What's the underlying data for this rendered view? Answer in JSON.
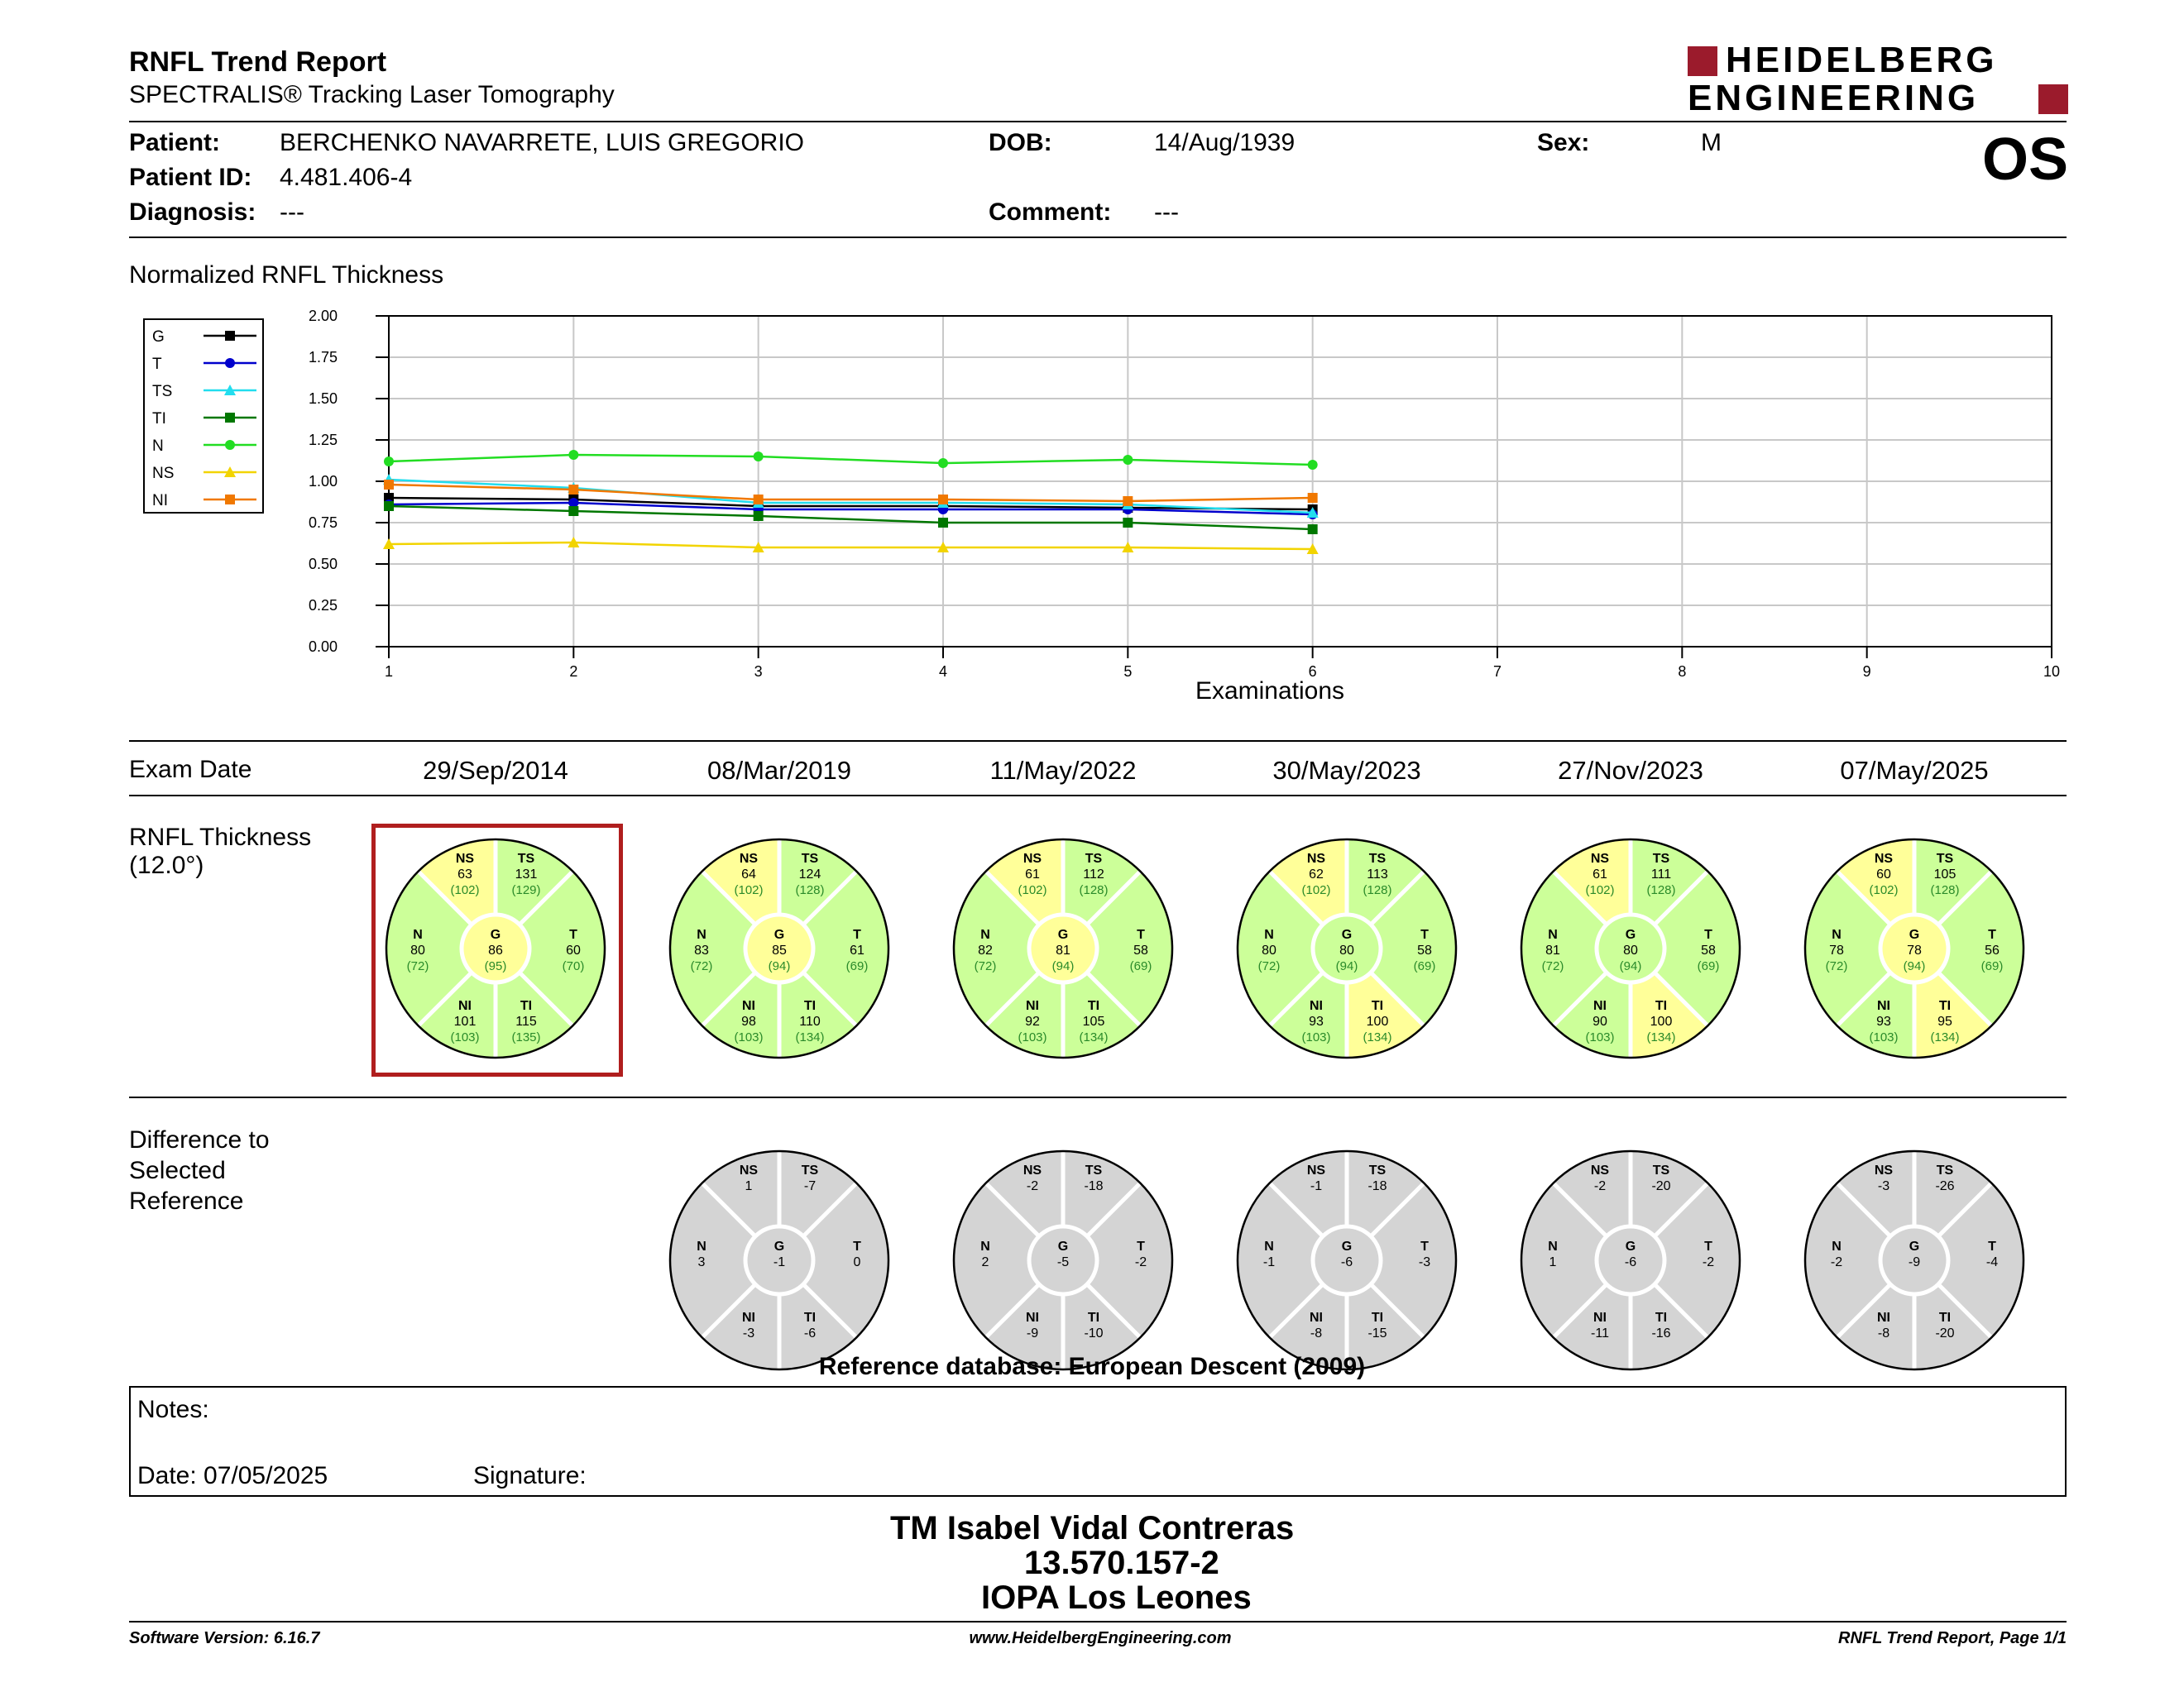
{
  "header": {
    "title": "RNFL Trend Report",
    "subtitle": "SPECTRALIS® Tracking Laser Tomography",
    "logo_line1": "HEIDELBERG",
    "logo_line2": "ENGINEERING",
    "logo_color": "#9b1b2c"
  },
  "patient": {
    "patient_label": "Patient:",
    "patient_value": "BERCHENKO NAVARRETE, LUIS GREGORIO",
    "dob_label": "DOB:",
    "dob_value": "14/Aug/1939",
    "sex_label": "Sex:",
    "sex_value": "M",
    "id_label": "Patient ID:",
    "id_value": "4.481.406-4",
    "diag_label": "Diagnosis:",
    "diag_value": "---",
    "comment_label": "Comment:",
    "comment_value": "---",
    "eye": "OS"
  },
  "chart_title": "Normalized RNFL Thickness",
  "chart_data": {
    "type": "line",
    "xlabel": "Examinations",
    "ylabel": "",
    "x_ticks": [
      "1",
      "2",
      "3",
      "4",
      "5",
      "6",
      "7",
      "8",
      "9",
      "10"
    ],
    "y_ticks": [
      "0.00",
      "0.25",
      "0.50",
      "0.75",
      "1.00",
      "1.25",
      "1.50",
      "1.75",
      "2.00"
    ],
    "xlim": [
      1,
      10
    ],
    "ylim": [
      0,
      2
    ],
    "grid": true,
    "legend_position": "left",
    "series": [
      {
        "name": "G",
        "color": "#000000",
        "marker": "square",
        "x": [
          1,
          2,
          3,
          4,
          5,
          6
        ],
        "values": [
          0.9,
          0.89,
          0.85,
          0.85,
          0.84,
          0.83
        ]
      },
      {
        "name": "T",
        "color": "#0000cc",
        "marker": "circle",
        "x": [
          1,
          2,
          3,
          4,
          5,
          6
        ],
        "values": [
          0.86,
          0.87,
          0.83,
          0.83,
          0.83,
          0.8
        ]
      },
      {
        "name": "TS",
        "color": "#22ddee",
        "marker": "triangle",
        "x": [
          1,
          2,
          3,
          4,
          5,
          6
        ],
        "values": [
          1.01,
          0.96,
          0.87,
          0.87,
          0.86,
          0.81
        ]
      },
      {
        "name": "TI",
        "color": "#007700",
        "marker": "square",
        "x": [
          1,
          2,
          3,
          4,
          5,
          6
        ],
        "values": [
          0.85,
          0.82,
          0.79,
          0.75,
          0.75,
          0.71
        ]
      },
      {
        "name": "N",
        "color": "#22dd22",
        "marker": "circle",
        "x": [
          1,
          2,
          3,
          4,
          5,
          6
        ],
        "values": [
          1.12,
          1.16,
          1.15,
          1.11,
          1.13,
          1.1
        ]
      },
      {
        "name": "NS",
        "color": "#f2d400",
        "marker": "triangle",
        "x": [
          1,
          2,
          3,
          4,
          5,
          6
        ],
        "values": [
          0.62,
          0.63,
          0.6,
          0.6,
          0.6,
          0.59
        ]
      },
      {
        "name": "NI",
        "color": "#f07800",
        "marker": "square",
        "x": [
          1,
          2,
          3,
          4,
          5,
          6
        ],
        "values": [
          0.98,
          0.95,
          0.89,
          0.89,
          0.88,
          0.9
        ]
      }
    ]
  },
  "exam_date_label": "Exam Date",
  "exam_dates": [
    "29/Sep/2014",
    "08/Mar/2019",
    "11/May/2022",
    "30/May/2023",
    "27/Nov/2023",
    "07/May/2025"
  ],
  "rnfl_label_line1": "RNFL Thickness",
  "rnfl_label_line2": "(12.0°)",
  "diff_label_line1": "Difference to",
  "diff_label_line2": "Selected",
  "diff_label_line3": "Reference",
  "colors": {
    "green": "#ccff99",
    "yellow": "#ffff99",
    "gray": "#d4d4d4",
    "selected_frame": "#b01e1e",
    "ref_text": "#2a8a2a"
  },
  "rnfl_charts": [
    {
      "selected": true,
      "NS": {
        "v": "63",
        "r": "(102)",
        "c": "yellow"
      },
      "TS": {
        "v": "131",
        "r": "(129)",
        "c": "green"
      },
      "N": {
        "v": "80",
        "r": "(72)",
        "c": "green"
      },
      "G": {
        "v": "86",
        "r": "(95)",
        "c": "yellow"
      },
      "T": {
        "v": "60",
        "r": "(70)",
        "c": "green"
      },
      "NI": {
        "v": "101",
        "r": "(103)",
        "c": "green"
      },
      "TI": {
        "v": "115",
        "r": "(135)",
        "c": "green"
      }
    },
    {
      "selected": false,
      "NS": {
        "v": "64",
        "r": "(102)",
        "c": "yellow"
      },
      "TS": {
        "v": "124",
        "r": "(128)",
        "c": "green"
      },
      "N": {
        "v": "83",
        "r": "(72)",
        "c": "green"
      },
      "G": {
        "v": "85",
        "r": "(94)",
        "c": "yellow"
      },
      "T": {
        "v": "61",
        "r": "(69)",
        "c": "green"
      },
      "NI": {
        "v": "98",
        "r": "(103)",
        "c": "green"
      },
      "TI": {
        "v": "110",
        "r": "(134)",
        "c": "green"
      }
    },
    {
      "selected": false,
      "NS": {
        "v": "61",
        "r": "(102)",
        "c": "yellow"
      },
      "TS": {
        "v": "112",
        "r": "(128)",
        "c": "green"
      },
      "N": {
        "v": "82",
        "r": "(72)",
        "c": "green"
      },
      "G": {
        "v": "81",
        "r": "(94)",
        "c": "yellow"
      },
      "T": {
        "v": "58",
        "r": "(69)",
        "c": "green"
      },
      "NI": {
        "v": "92",
        "r": "(103)",
        "c": "green"
      },
      "TI": {
        "v": "105",
        "r": "(134)",
        "c": "green"
      }
    },
    {
      "selected": false,
      "NS": {
        "v": "62",
        "r": "(102)",
        "c": "yellow"
      },
      "TS": {
        "v": "113",
        "r": "(128)",
        "c": "green"
      },
      "N": {
        "v": "80",
        "r": "(72)",
        "c": "green"
      },
      "G": {
        "v": "80",
        "r": "(94)",
        "c": "green"
      },
      "T": {
        "v": "58",
        "r": "(69)",
        "c": "green"
      },
      "NI": {
        "v": "93",
        "r": "(103)",
        "c": "green"
      },
      "TI": {
        "v": "100",
        "r": "(134)",
        "c": "yellow"
      }
    },
    {
      "selected": false,
      "NS": {
        "v": "61",
        "r": "(102)",
        "c": "yellow"
      },
      "TS": {
        "v": "111",
        "r": "(128)",
        "c": "green"
      },
      "N": {
        "v": "81",
        "r": "(72)",
        "c": "green"
      },
      "G": {
        "v": "80",
        "r": "(94)",
        "c": "green"
      },
      "T": {
        "v": "58",
        "r": "(69)",
        "c": "green"
      },
      "NI": {
        "v": "90",
        "r": "(103)",
        "c": "green"
      },
      "TI": {
        "v": "100",
        "r": "(134)",
        "c": "yellow"
      }
    },
    {
      "selected": false,
      "NS": {
        "v": "60",
        "r": "(102)",
        "c": "yellow"
      },
      "TS": {
        "v": "105",
        "r": "(128)",
        "c": "green"
      },
      "N": {
        "v": "78",
        "r": "(72)",
        "c": "green"
      },
      "G": {
        "v": "78",
        "r": "(94)",
        "c": "yellow"
      },
      "T": {
        "v": "56",
        "r": "(69)",
        "c": "green"
      },
      "NI": {
        "v": "93",
        "r": "(103)",
        "c": "green"
      },
      "TI": {
        "v": "95",
        "r": "(134)",
        "c": "yellow"
      }
    }
  ],
  "diff_charts": [
    {
      "NS": "1",
      "TS": "-7",
      "N": "3",
      "G": "-1",
      "T": "0",
      "NI": "-3",
      "TI": "-6"
    },
    {
      "NS": "-2",
      "TS": "-18",
      "N": "2",
      "G": "-5",
      "T": "-2",
      "NI": "-9",
      "TI": "-10"
    },
    {
      "NS": "-1",
      "TS": "-18",
      "N": "-1",
      "G": "-6",
      "T": "-3",
      "NI": "-8",
      "TI": "-15"
    },
    {
      "NS": "-2",
      "TS": "-20",
      "N": "1",
      "G": "-6",
      "T": "-2",
      "NI": "-11",
      "TI": "-16"
    },
    {
      "NS": "-3",
      "TS": "-26",
      "N": "-2",
      "G": "-9",
      "T": "-4",
      "NI": "-8",
      "TI": "-20"
    }
  ],
  "reference_db": "Reference database: European Descent (2009)",
  "notes": {
    "label": "Notes:",
    "date": "Date: 07/05/2025",
    "signature": "Signature:"
  },
  "signer": {
    "name": "TM Isabel Vidal Contreras",
    "id": "13.570.157-2",
    "place": "IOPA Los Leones"
  },
  "footer": {
    "software": "Software Version: 6.16.7",
    "url": "www.HeidelbergEngineering.com",
    "page": "RNFL Trend Report, Page 1/1"
  }
}
